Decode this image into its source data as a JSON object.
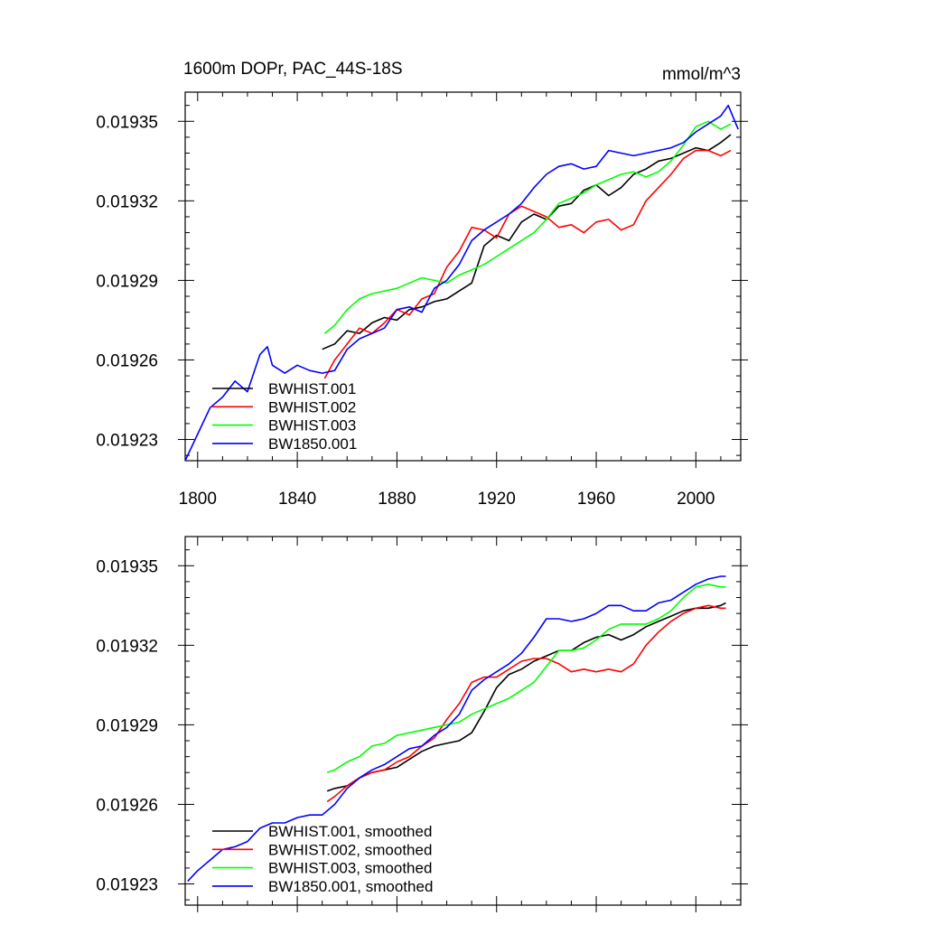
{
  "chart_data": [
    {
      "type": "line",
      "title": "1600m DOPr, PAC_44S-18S",
      "units": "mmol/m^3",
      "xlim": [
        1795,
        2018
      ],
      "ylim": [
        0.019222,
        0.019361
      ],
      "x_ticks": [
        "1800",
        "1840",
        "1880",
        "1920",
        "1960",
        "2000"
      ],
      "y_ticks": [
        "0.01923",
        "0.01926",
        "0.01929",
        "0.01932",
        "0.01935"
      ],
      "grid": false,
      "legend_position": "bottom-left",
      "series": [
        {
          "name": "BWHIST.001",
          "color": "#000000",
          "x": [
            1850,
            1855,
            1860,
            1865,
            1870,
            1875,
            1880,
            1885,
            1890,
            1895,
            1900,
            1905,
            1910,
            1915,
            1920,
            1925,
            1930,
            1935,
            1940,
            1945,
            1950,
            1955,
            1960,
            1965,
            1970,
            1975,
            1980,
            1985,
            1990,
            1995,
            2000,
            2005,
            2010,
            2014
          ],
          "y": [
            0.019264,
            0.019266,
            0.019271,
            0.01927,
            0.019274,
            0.019276,
            0.019275,
            0.019279,
            0.01928,
            0.019282,
            0.019283,
            0.019286,
            0.019289,
            0.019303,
            0.019307,
            0.019305,
            0.019312,
            0.019315,
            0.019313,
            0.019318,
            0.019319,
            0.019324,
            0.019326,
            0.019322,
            0.019325,
            0.01933,
            0.019332,
            0.019335,
            0.019336,
            0.019338,
            0.01934,
            0.019339,
            0.019342,
            0.019345
          ]
        },
        {
          "name": "BWHIST.002",
          "color": "#ff0000",
          "x": [
            1851,
            1855,
            1860,
            1865,
            1870,
            1875,
            1880,
            1885,
            1890,
            1895,
            1900,
            1905,
            1910,
            1915,
            1920,
            1925,
            1930,
            1935,
            1940,
            1945,
            1950,
            1955,
            1960,
            1965,
            1970,
            1975,
            1980,
            1985,
            1990,
            1995,
            2000,
            2005,
            2010,
            2014
          ],
          "y": [
            0.019253,
            0.01926,
            0.019266,
            0.019272,
            0.01927,
            0.019274,
            0.019279,
            0.019277,
            0.019283,
            0.019285,
            0.019295,
            0.019301,
            0.01931,
            0.019309,
            0.019306,
            0.019315,
            0.019318,
            0.019316,
            0.019314,
            0.01931,
            0.019311,
            0.019308,
            0.019312,
            0.019313,
            0.019309,
            0.019311,
            0.01932,
            0.019325,
            0.01933,
            0.019336,
            0.019339,
            0.019339,
            0.019337,
            0.019339
          ]
        },
        {
          "name": "BWHIST.003",
          "color": "#00ff00",
          "x": [
            1851,
            1855,
            1860,
            1865,
            1870,
            1875,
            1880,
            1885,
            1890,
            1895,
            1900,
            1905,
            1910,
            1915,
            1920,
            1925,
            1930,
            1935,
            1940,
            1945,
            1950,
            1955,
            1960,
            1965,
            1970,
            1975,
            1980,
            1985,
            1990,
            1995,
            2000,
            2005,
            2010,
            2014
          ],
          "y": [
            0.01927,
            0.019273,
            0.019279,
            0.019283,
            0.019285,
            0.019286,
            0.019287,
            0.019289,
            0.019291,
            0.01929,
            0.019289,
            0.019292,
            0.019294,
            0.019296,
            0.019299,
            0.019302,
            0.019305,
            0.019308,
            0.019313,
            0.019319,
            0.019321,
            0.019323,
            0.019326,
            0.019328,
            0.01933,
            0.019331,
            0.019329,
            0.019331,
            0.019335,
            0.019341,
            0.019348,
            0.01935,
            0.019347,
            0.019349
          ]
        },
        {
          "name": "BW1850.001",
          "color": "#0000ff",
          "x": [
            1795,
            1800,
            1805,
            1810,
            1815,
            1820,
            1825,
            1828,
            1830,
            1835,
            1840,
            1845,
            1850,
            1855,
            1860,
            1865,
            1870,
            1875,
            1880,
            1885,
            1890,
            1895,
            1900,
            1905,
            1910,
            1915,
            1920,
            1925,
            1930,
            1935,
            1940,
            1945,
            1950,
            1955,
            1960,
            1965,
            1970,
            1975,
            1980,
            1985,
            1990,
            1995,
            2000,
            2005,
            2010,
            2013,
            2017
          ],
          "y": [
            0.019222,
            0.019232,
            0.019242,
            0.019246,
            0.019252,
            0.019248,
            0.019262,
            0.019265,
            0.019258,
            0.019255,
            0.019258,
            0.019256,
            0.019255,
            0.019256,
            0.019264,
            0.019268,
            0.01927,
            0.019272,
            0.019279,
            0.01928,
            0.019278,
            0.019287,
            0.01929,
            0.019296,
            0.019305,
            0.019309,
            0.019312,
            0.019315,
            0.019319,
            0.019325,
            0.01933,
            0.019333,
            0.019334,
            0.019332,
            0.019333,
            0.019339,
            0.019338,
            0.019337,
            0.019338,
            0.019339,
            0.01934,
            0.019342,
            0.019346,
            0.019349,
            0.019352,
            0.019356,
            0.019347
          ]
        }
      ]
    },
    {
      "type": "line",
      "xlim": [
        1795,
        2018
      ],
      "ylim": [
        0.019222,
        0.019361
      ],
      "y_ticks": [
        "0.01923",
        "0.01926",
        "0.01929",
        "0.01932",
        "0.01935"
      ],
      "x_tick_values": [
        1800,
        1840,
        1880,
        1920,
        1960,
        2000
      ],
      "grid": false,
      "legend_position": "bottom-left",
      "series": [
        {
          "name": "BWHIST.001, smoothed",
          "color": "#000000",
          "x": [
            1852,
            1855,
            1860,
            1865,
            1870,
            1875,
            1880,
            1885,
            1890,
            1895,
            1900,
            1905,
            1910,
            1915,
            1920,
            1925,
            1930,
            1935,
            1940,
            1945,
            1950,
            1955,
            1960,
            1965,
            1970,
            1975,
            1980,
            1985,
            1990,
            1995,
            2000,
            2005,
            2010,
            2012
          ],
          "y": [
            0.019265,
            0.019266,
            0.019267,
            0.01927,
            0.019272,
            0.019273,
            0.019274,
            0.019277,
            0.01928,
            0.019282,
            0.019283,
            0.019284,
            0.019287,
            0.019295,
            0.019304,
            0.019309,
            0.019311,
            0.019314,
            0.019316,
            0.019318,
            0.019318,
            0.019321,
            0.019323,
            0.019324,
            0.019322,
            0.019324,
            0.019327,
            0.019329,
            0.019331,
            0.019333,
            0.019334,
            0.019334,
            0.019335,
            0.019336
          ]
        },
        {
          "name": "BWHIST.002, smoothed",
          "color": "#ff0000",
          "x": [
            1852,
            1855,
            1860,
            1865,
            1870,
            1875,
            1880,
            1885,
            1890,
            1895,
            1900,
            1905,
            1910,
            1915,
            1920,
            1925,
            1930,
            1935,
            1940,
            1945,
            1950,
            1955,
            1960,
            1965,
            1970,
            1975,
            1980,
            1985,
            1990,
            1995,
            2000,
            2005,
            2010,
            2012
          ],
          "y": [
            0.019261,
            0.019263,
            0.019267,
            0.01927,
            0.019272,
            0.019273,
            0.019276,
            0.019278,
            0.019282,
            0.019285,
            0.019292,
            0.019298,
            0.019306,
            0.019308,
            0.019308,
            0.019311,
            0.019314,
            0.019315,
            0.019315,
            0.019313,
            0.01931,
            0.019311,
            0.01931,
            0.019311,
            0.01931,
            0.019313,
            0.01932,
            0.019325,
            0.019329,
            0.019332,
            0.019334,
            0.019335,
            0.019334,
            0.019334
          ]
        },
        {
          "name": "BWHIST.003, smoothed",
          "color": "#00ff00",
          "x": [
            1852,
            1855,
            1860,
            1865,
            1870,
            1875,
            1880,
            1885,
            1890,
            1895,
            1900,
            1905,
            1910,
            1915,
            1920,
            1925,
            1930,
            1935,
            1940,
            1945,
            1950,
            1955,
            1960,
            1965,
            1970,
            1975,
            1980,
            1985,
            1990,
            1995,
            2000,
            2005,
            2010,
            2012
          ],
          "y": [
            0.019272,
            0.019273,
            0.019276,
            0.019278,
            0.019282,
            0.019283,
            0.019286,
            0.019287,
            0.019288,
            0.019289,
            0.01929,
            0.019291,
            0.019294,
            0.019296,
            0.019298,
            0.0193,
            0.019303,
            0.019306,
            0.019312,
            0.019318,
            0.019318,
            0.019319,
            0.019322,
            0.019326,
            0.019328,
            0.019328,
            0.019328,
            0.01933,
            0.019333,
            0.019338,
            0.019342,
            0.019343,
            0.019342,
            0.019342
          ]
        },
        {
          "name": "BW1850.001, smoothed",
          "color": "#0000ff",
          "x": [
            1796,
            1800,
            1805,
            1810,
            1815,
            1820,
            1825,
            1830,
            1835,
            1840,
            1845,
            1850,
            1855,
            1860,
            1865,
            1870,
            1875,
            1880,
            1885,
            1890,
            1895,
            1900,
            1905,
            1910,
            1915,
            1920,
            1925,
            1930,
            1935,
            1940,
            1945,
            1950,
            1955,
            1960,
            1965,
            1970,
            1975,
            1980,
            1985,
            1990,
            1995,
            2000,
            2005,
            2010,
            2012
          ],
          "y": [
            0.019231,
            0.019235,
            0.019239,
            0.019243,
            0.019244,
            0.019246,
            0.019251,
            0.019253,
            0.019253,
            0.019255,
            0.019256,
            0.019256,
            0.01926,
            0.019266,
            0.01927,
            0.019273,
            0.019275,
            0.019278,
            0.019281,
            0.019282,
            0.019286,
            0.019289,
            0.019294,
            0.019303,
            0.019307,
            0.01931,
            0.019313,
            0.019317,
            0.019323,
            0.01933,
            0.01933,
            0.019329,
            0.01933,
            0.019332,
            0.019335,
            0.019335,
            0.019333,
            0.019333,
            0.019336,
            0.019337,
            0.01934,
            0.019343,
            0.019345,
            0.019346,
            0.019346
          ]
        }
      ]
    }
  ]
}
